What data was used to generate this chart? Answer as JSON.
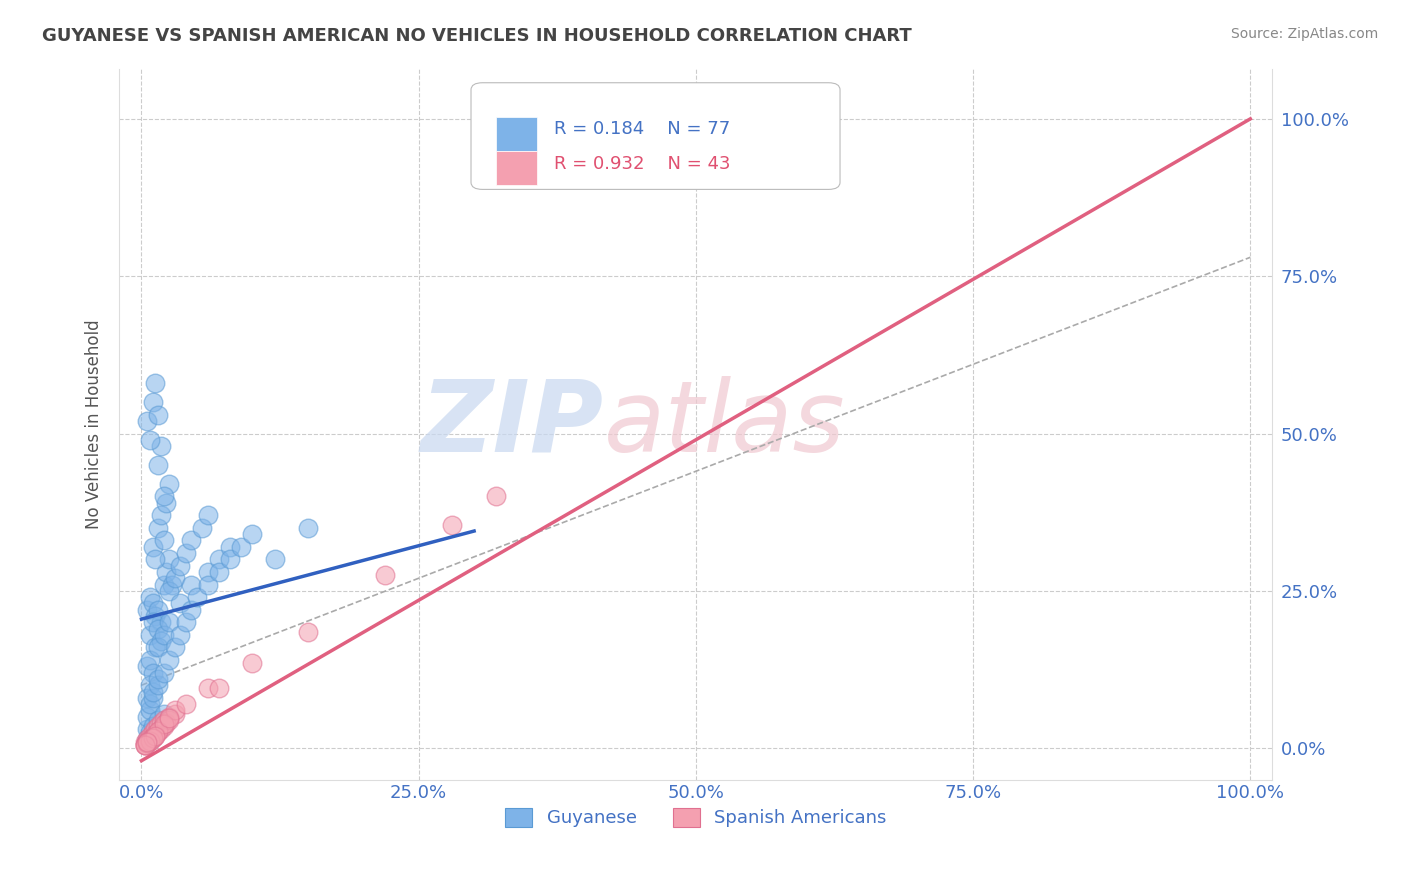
{
  "title": "GUYANESE VS SPANISH AMERICAN NO VEHICLES IN HOUSEHOLD CORRELATION CHART",
  "source": "Source: ZipAtlas.com",
  "ylabel": "No Vehicles in Household",
  "xlim": [
    -0.02,
    1.02
  ],
  "ylim": [
    -0.05,
    1.08
  ],
  "xticks": [
    0.0,
    0.25,
    0.5,
    0.75,
    1.0
  ],
  "xticklabels": [
    "0.0%",
    "25.0%",
    "50.0%",
    "75.0%",
    "100.0%"
  ],
  "yticks": [
    0.0,
    0.25,
    0.5,
    0.75,
    1.0
  ],
  "yticklabels": [
    "0.0%",
    "25.0%",
    "50.0%",
    "75.0%",
    "100.0%"
  ],
  "guyanese_color": "#7EB3E8",
  "guyanese_edge": "#5A9AD4",
  "spanish_color": "#F4A0B0",
  "spanish_edge": "#E07090",
  "trendline_blue": "#3060C0",
  "trendline_pink": "#E06080",
  "legend_R_blue": "R = 0.184",
  "legend_N_blue": "N = 77",
  "legend_R_pink": "R = 0.932",
  "legend_N_pink": "N = 43",
  "watermark": "ZIPatlas",
  "background_color": "#FFFFFF",
  "grid_color": "#CCCCCC",
  "blue_trend_x0": 0.0,
  "blue_trend_y0": 0.205,
  "blue_trend_x1": 0.3,
  "blue_trend_y1": 0.345,
  "pink_trend_x0": 0.0,
  "pink_trend_y0": -0.02,
  "pink_trend_x1": 1.0,
  "pink_trend_y1": 1.0,
  "ref_line_x0": 0.0,
  "ref_line_y0": 0.1,
  "ref_line_x1": 1.0,
  "ref_line_y1": 0.78,
  "guyanese_x": [
    0.005,
    0.008,
    0.01,
    0.012,
    0.015,
    0.018,
    0.02,
    0.022,
    0.025,
    0.028,
    0.01,
    0.012,
    0.015,
    0.018,
    0.02,
    0.022,
    0.025,
    0.015,
    0.018,
    0.02,
    0.005,
    0.008,
    0.01,
    0.012,
    0.015,
    0.008,
    0.01,
    0.012,
    0.015,
    0.018,
    0.005,
    0.008,
    0.01,
    0.025,
    0.03,
    0.035,
    0.04,
    0.045,
    0.055,
    0.06,
    0.005,
    0.008,
    0.015,
    0.02,
    0.025,
    0.035,
    0.045,
    0.06,
    0.07,
    0.08,
    0.005,
    0.005,
    0.008,
    0.008,
    0.01,
    0.01,
    0.015,
    0.015,
    0.02,
    0.025,
    0.03,
    0.035,
    0.04,
    0.045,
    0.05,
    0.06,
    0.07,
    0.08,
    0.09,
    0.1,
    0.005,
    0.008,
    0.01,
    0.015,
    0.02,
    0.12,
    0.15
  ],
  "guyanese_y": [
    0.22,
    0.24,
    0.23,
    0.21,
    0.22,
    0.2,
    0.26,
    0.28,
    0.3,
    0.26,
    0.32,
    0.3,
    0.35,
    0.37,
    0.33,
    0.39,
    0.42,
    0.45,
    0.48,
    0.4,
    0.52,
    0.49,
    0.55,
    0.58,
    0.53,
    0.18,
    0.2,
    0.16,
    0.19,
    0.17,
    0.13,
    0.14,
    0.12,
    0.25,
    0.27,
    0.29,
    0.31,
    0.33,
    0.35,
    0.37,
    0.08,
    0.1,
    0.16,
    0.18,
    0.2,
    0.23,
    0.26,
    0.28,
    0.3,
    0.32,
    0.03,
    0.05,
    0.06,
    0.07,
    0.08,
    0.09,
    0.1,
    0.11,
    0.12,
    0.14,
    0.16,
    0.18,
    0.2,
    0.22,
    0.24,
    0.26,
    0.28,
    0.3,
    0.32,
    0.34,
    0.015,
    0.025,
    0.035,
    0.045,
    0.055,
    0.3,
    0.35
  ],
  "spanish_x": [
    0.003,
    0.005,
    0.008,
    0.01,
    0.012,
    0.015,
    0.018,
    0.02,
    0.025,
    0.03,
    0.005,
    0.008,
    0.01,
    0.012,
    0.015,
    0.018,
    0.02,
    0.022,
    0.025,
    0.03,
    0.003,
    0.005,
    0.008,
    0.01,
    0.012,
    0.015,
    0.02,
    0.025,
    0.04,
    0.06,
    0.003,
    0.005,
    0.008,
    0.01,
    0.012,
    0.07,
    0.1,
    0.15,
    0.22,
    0.28,
    0.003,
    0.005,
    0.32
  ],
  "spanish_y": [
    0.01,
    0.015,
    0.02,
    0.025,
    0.03,
    0.035,
    0.04,
    0.045,
    0.05,
    0.055,
    0.008,
    0.012,
    0.016,
    0.02,
    0.025,
    0.03,
    0.035,
    0.04,
    0.045,
    0.06,
    0.005,
    0.01,
    0.015,
    0.018,
    0.022,
    0.028,
    0.038,
    0.048,
    0.07,
    0.095,
    0.005,
    0.008,
    0.012,
    0.016,
    0.02,
    0.095,
    0.135,
    0.185,
    0.275,
    0.355,
    0.005,
    0.01,
    0.4
  ]
}
